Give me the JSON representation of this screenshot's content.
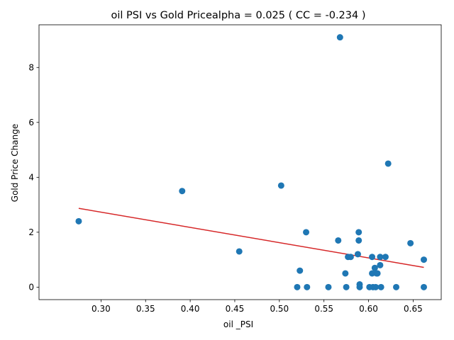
{
  "chart_data": {
    "type": "scatter",
    "title": "oil  PSI vs Gold Pricealpha = 0.025 ( CC = -0.234 )",
    "xlabel": "oil _PSI",
    "ylabel": "Gold Price Change",
    "xlim": [
      0.2305,
      0.6815
    ],
    "ylim": [
      -0.455,
      9.555
    ],
    "x_ticks": [
      0.3,
      0.35,
      0.4,
      0.45,
      0.5,
      0.55,
      0.6,
      0.65
    ],
    "x_tick_labels": [
      "0.30",
      "0.35",
      "0.40",
      "0.45",
      "0.50",
      "0.55",
      "0.60",
      "0.65"
    ],
    "y_ticks": [
      0,
      2,
      4,
      6,
      8
    ],
    "y_tick_labels": [
      "0",
      "2",
      "4",
      "6",
      "8"
    ],
    "grid": false,
    "colors": {
      "points": "#1f77b4",
      "fit_line": "#d62728"
    },
    "points": {
      "x": [
        0.275,
        0.391,
        0.455,
        0.502,
        0.52,
        0.523,
        0.53,
        0.531,
        0.555,
        0.566,
        0.568,
        0.574,
        0.575,
        0.577,
        0.58,
        0.588,
        0.589,
        0.589,
        0.59,
        0.59,
        0.601,
        0.604,
        0.604,
        0.605,
        0.607,
        0.608,
        0.609,
        0.61,
        0.613,
        0.613,
        0.614,
        0.619,
        0.622,
        0.631,
        0.647,
        0.662,
        0.662
      ],
      "y": [
        2.4,
        3.5,
        1.3,
        3.7,
        0.0,
        0.6,
        2.0,
        0.0,
        0.0,
        1.7,
        9.1,
        0.5,
        0.0,
        1.1,
        1.1,
        1.2,
        2.0,
        1.7,
        0.1,
        0.0,
        0.0,
        0.5,
        1.1,
        0.0,
        0.7,
        0.0,
        0.5,
        0.5,
        0.8,
        1.1,
        0.0,
        1.1,
        4.5,
        0.0,
        1.6,
        1.0,
        0.0
      ]
    },
    "fit_line": {
      "x": [
        0.275,
        0.662
      ],
      "y": [
        2.87,
        0.72
      ]
    }
  }
}
